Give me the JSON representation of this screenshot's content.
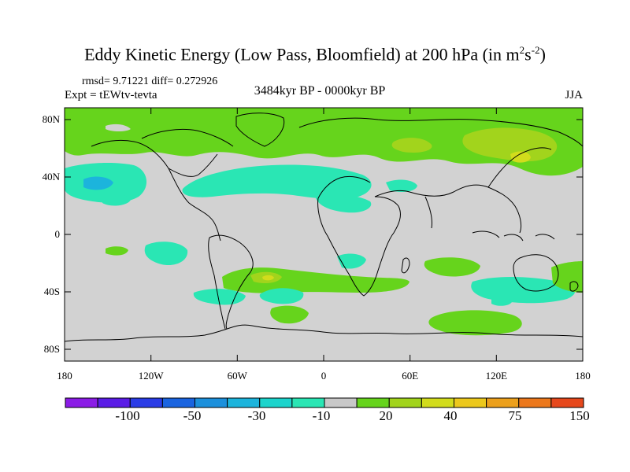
{
  "title": {
    "main": "Eddy Kinetic Energy (Low Pass, Bloomfield) at 200 hPa (in m",
    "sup1": "2",
    "s": "s",
    "sup2": "-2",
    "close": ")"
  },
  "stats": "rmsd= 9.71221 diff= 0.272926",
  "expt": "Expt = tEWtv-tevta",
  "period": "3484kyr BP - 0000kyr BP",
  "season": "JJA",
  "lat_labels": [
    "80N",
    "40N",
    "0",
    "40S",
    "80S"
  ],
  "lon_labels": [
    "180",
    "120W",
    "60W",
    "0",
    "60E",
    "120E",
    "180"
  ],
  "colorbar": {
    "colors": [
      "#8b1ce6",
      "#5a1ce6",
      "#2a3ce6",
      "#1a64e0",
      "#1c90dc",
      "#1cb4dc",
      "#1cd4cc",
      "#2ae6b4",
      "#c8c8c8",
      "#66d41c",
      "#a2d41c",
      "#d2dc1c",
      "#ecc81c",
      "#eca01c",
      "#ec781c",
      "#e6481c"
    ],
    "labels": [
      "-100",
      "-50",
      "-30",
      "-10",
      "20",
      "40",
      "75",
      "150"
    ]
  },
  "colors": {
    "land_neutral": "#d2d2d2",
    "positive_light": "#66d41c",
    "positive_mid": "#a2d41c",
    "positive_high": "#d2dc1c",
    "negative_light": "#2ae6b4",
    "negative_mid": "#1cd4cc",
    "negative_high": "#1cb4dc"
  }
}
